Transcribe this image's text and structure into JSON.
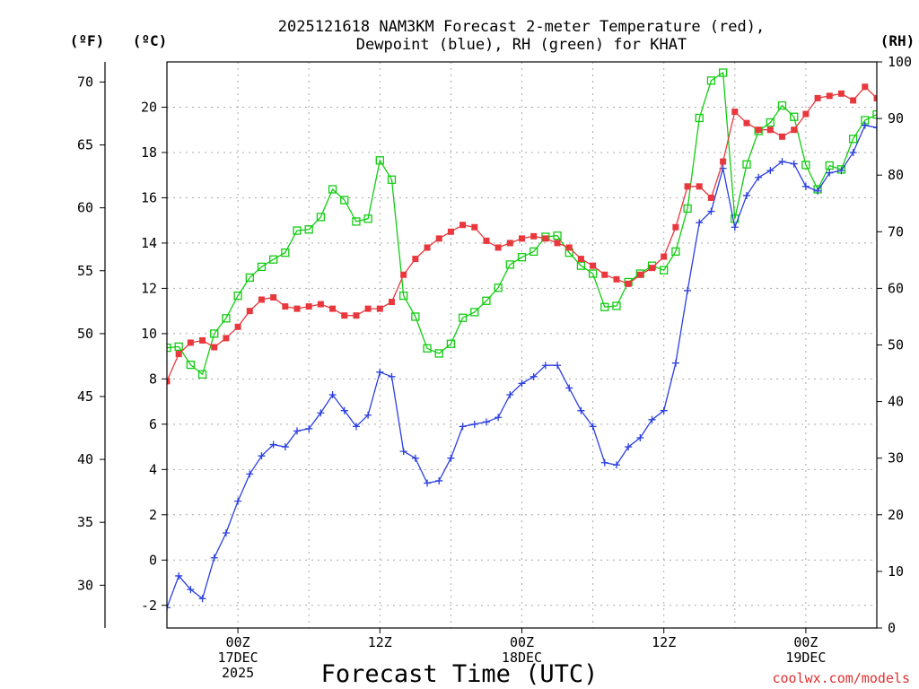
{
  "title": {
    "line1": "2025121618 NAM3KM Forecast 2-meter Temperature (red),",
    "line2": "Dewpoint (blue), RH (green) for KHAT"
  },
  "units": {
    "fahrenheit": "(ºF)",
    "celsius": "(ºC)",
    "rh": "(RH)"
  },
  "xlabel": "Forecast Time (UTC)",
  "credit": "coolwx.com/models",
  "colors": {
    "temp": "#e8383d",
    "dewpoint": "#2a3fe0",
    "rh": "#11cc11",
    "credit": "#e03030",
    "grid": "#a8a8a8"
  },
  "chart_data": {
    "type": "line",
    "title": "2025121618 NAM3KM Forecast 2-meter Temperature (red), Dewpoint (blue), RH (green) for KHAT",
    "xlabel": "Forecast Time (UTC)",
    "x_unit": "hours since 2025-12-17 00Z",
    "xlim": [
      -6,
      54
    ],
    "ylim_celsius": [
      -3,
      22
    ],
    "ylim_fahrenheit": [
      26.6,
      71.6
    ],
    "ylim_rh": [
      0,
      100
    ],
    "celsius_ticks": [
      "-2",
      "0",
      "2",
      "4",
      "6",
      "8",
      "10",
      "12",
      "14",
      "16",
      "18",
      "20"
    ],
    "fahrenheit_ticks": [
      "30",
      "35",
      "40",
      "45",
      "50",
      "55",
      "60",
      "65",
      "70"
    ],
    "rh_ticks": [
      "0",
      "10",
      "20",
      "30",
      "40",
      "50",
      "60",
      "70",
      "80",
      "90",
      "100"
    ],
    "x_ticks": [
      {
        "hour": 0,
        "lines": [
          "00Z",
          "17DEC",
          "2025"
        ]
      },
      {
        "hour": 12,
        "lines": [
          "12Z"
        ]
      },
      {
        "hour": 24,
        "lines": [
          "00Z",
          "18DEC"
        ]
      },
      {
        "hour": 36,
        "lines": [
          "12Z"
        ]
      },
      {
        "hour": 48,
        "lines": [
          "00Z",
          "19DEC"
        ]
      }
    ],
    "x": [
      -6,
      -5,
      -4,
      -3,
      -2,
      -1,
      0,
      1,
      2,
      3,
      4,
      5,
      6,
      7,
      8,
      9,
      10,
      11,
      12,
      13,
      14,
      15,
      16,
      17,
      18,
      19,
      20,
      21,
      22,
      23,
      24,
      25,
      26,
      27,
      28,
      29,
      30,
      31,
      32,
      33,
      34,
      35,
      36,
      37,
      38,
      39,
      40,
      41,
      42,
      43,
      44,
      45,
      46,
      47,
      48,
      49,
      50,
      51,
      52,
      53,
      54
    ],
    "series": [
      {
        "name": "Temperature (°C)",
        "axis": "celsius",
        "marker": "filled-square",
        "values": [
          7.9,
          9.1,
          9.6,
          9.7,
          9.4,
          9.8,
          10.3,
          11.0,
          11.5,
          11.6,
          11.2,
          11.1,
          11.2,
          11.3,
          11.1,
          10.8,
          10.8,
          11.1,
          11.1,
          11.4,
          12.6,
          13.3,
          13.8,
          14.2,
          14.5,
          14.8,
          14.7,
          14.1,
          13.8,
          14.0,
          14.2,
          14.3,
          14.2,
          14.0,
          13.8,
          13.3,
          13.0,
          12.6,
          12.4,
          12.2,
          12.6,
          12.9,
          13.4,
          14.7,
          16.5,
          16.5,
          16.0,
          17.6,
          19.8,
          19.3,
          19.0,
          19.0,
          18.7,
          19.0,
          19.7,
          20.4,
          20.5,
          20.6,
          20.3,
          20.9,
          20.4
        ]
      },
      {
        "name": "Dewpoint (°C)",
        "axis": "celsius",
        "marker": "plus",
        "values": [
          -2.1,
          -0.7,
          -1.3,
          -1.7,
          0.1,
          1.2,
          2.6,
          3.8,
          4.6,
          5.1,
          5.0,
          5.7,
          5.8,
          6.5,
          7.3,
          6.6,
          5.9,
          6.4,
          8.3,
          8.1,
          4.8,
          4.5,
          3.4,
          3.5,
          4.5,
          5.9,
          6.0,
          6.1,
          6.3,
          7.3,
          7.8,
          8.1,
          8.6,
          8.6,
          7.6,
          6.6,
          5.9,
          4.3,
          4.2,
          5.0,
          5.4,
          6.2,
          6.6,
          8.7,
          11.9,
          14.9,
          15.4,
          17.3,
          14.7,
          16.1,
          16.9,
          17.2,
          17.6,
          17.5,
          16.5,
          16.3,
          17.1,
          17.2,
          18.0,
          19.2,
          19.1
        ]
      },
      {
        "name": "RH (%)",
        "axis": "rh",
        "marker": "open-square",
        "values": [
          49.5,
          49.7,
          46.5,
          44.8,
          52.0,
          54.7,
          58.7,
          61.9,
          63.8,
          65.1,
          66.3,
          70.2,
          70.4,
          72.6,
          77.5,
          75.6,
          71.8,
          72.3,
          82.6,
          79.2,
          58.7,
          55.0,
          49.4,
          48.5,
          50.2,
          54.8,
          55.8,
          57.8,
          60.1,
          64.2,
          65.5,
          66.5,
          69.1,
          69.3,
          66.3,
          64.0,
          62.6,
          56.7,
          56.9,
          61.1,
          62.6,
          64.0,
          63.2,
          66.5,
          74.1,
          90.1,
          96.7,
          98.1,
          72.3,
          81.9,
          87.8,
          89.3,
          92.3,
          90.3,
          81.8,
          77.5,
          81.7,
          81.0,
          86.4,
          89.7,
          90.7
        ]
      }
    ]
  }
}
